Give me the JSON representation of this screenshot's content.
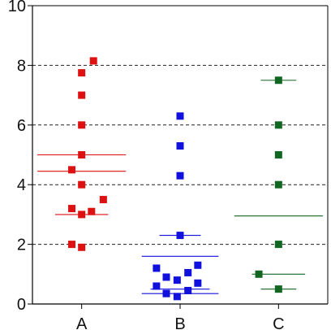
{
  "chart_data": {
    "type": "scatter",
    "title": "",
    "xlabel": "",
    "ylabel": "",
    "ylim": [
      0,
      10
    ],
    "yticks": [
      "0",
      "2",
      "4",
      "6",
      "8",
      "10"
    ],
    "grid": {
      "style": "dashed",
      "y_levels": [
        2,
        4,
        6,
        8
      ]
    },
    "categories": [
      "A",
      "B",
      "C"
    ],
    "series": [
      {
        "category": "A",
        "color": "#dd1111",
        "points": [
          {
            "x": 0.9,
            "y": 2.0
          },
          {
            "x": 1.0,
            "y": 1.9
          },
          {
            "x": 0.9,
            "y": 3.2
          },
          {
            "x": 1.0,
            "y": 3.0
          },
          {
            "x": 1.1,
            "y": 3.1
          },
          {
            "x": 1.22,
            "y": 3.5
          },
          {
            "x": 1.0,
            "y": 4.0
          },
          {
            "x": 0.9,
            "y": 4.5
          },
          {
            "x": 1.0,
            "y": 5.0
          },
          {
            "x": 1.0,
            "y": 6.0
          },
          {
            "x": 1.0,
            "y": 7.0
          },
          {
            "x": 1.0,
            "y": 7.75
          },
          {
            "x": 1.12,
            "y": 8.15
          }
        ],
        "lines": [
          {
            "y": 5.0,
            "x0": 0.55,
            "x1": 1.45
          },
          {
            "y": 4.45,
            "x0": 0.55,
            "x1": 1.45
          },
          {
            "y": 3.0,
            "x0": 0.73,
            "x1": 1.27
          }
        ]
      },
      {
        "category": "B",
        "color": "#1111dd",
        "points": [
          {
            "x": 1.76,
            "y": 0.6
          },
          {
            "x": 1.76,
            "y": 1.2
          },
          {
            "x": 1.86,
            "y": 0.35
          },
          {
            "x": 1.86,
            "y": 0.9
          },
          {
            "x": 1.97,
            "y": 0.8
          },
          {
            "x": 1.97,
            "y": 0.25
          },
          {
            "x": 2.08,
            "y": 0.45
          },
          {
            "x": 2.08,
            "y": 1.05
          },
          {
            "x": 2.18,
            "y": 0.7
          },
          {
            "x": 2.18,
            "y": 1.3
          },
          {
            "x": 2.0,
            "y": 2.3
          },
          {
            "x": 2.0,
            "y": 4.3
          },
          {
            "x": 2.0,
            "y": 5.3
          },
          {
            "x": 2.0,
            "y": 6.3
          }
        ],
        "lines": [
          {
            "y": 2.3,
            "x0": 1.79,
            "x1": 2.21
          },
          {
            "y": 1.6,
            "x0": 1.61,
            "x1": 2.39
          },
          {
            "y": 0.5,
            "x0": 1.7,
            "x1": 2.3
          },
          {
            "y": 0.35,
            "x0": 1.61,
            "x1": 2.39
          }
        ]
      },
      {
        "category": "C",
        "color": "#116622",
        "points": [
          {
            "x": 2.8,
            "y": 1.0
          },
          {
            "x": 3.0,
            "y": 0.5
          },
          {
            "x": 3.0,
            "y": 2.0
          },
          {
            "x": 3.0,
            "y": 4.0
          },
          {
            "x": 3.0,
            "y": 5.0
          },
          {
            "x": 3.0,
            "y": 6.0
          },
          {
            "x": 3.0,
            "y": 7.5
          }
        ],
        "lines": [
          {
            "y": 7.5,
            "x0": 2.82,
            "x1": 3.18
          },
          {
            "y": 2.95,
            "x0": 2.55,
            "x1": 3.45
          },
          {
            "y": 1.0,
            "x0": 2.73,
            "x1": 3.27
          },
          {
            "y": 0.5,
            "x0": 2.82,
            "x1": 3.18
          }
        ]
      }
    ]
  }
}
